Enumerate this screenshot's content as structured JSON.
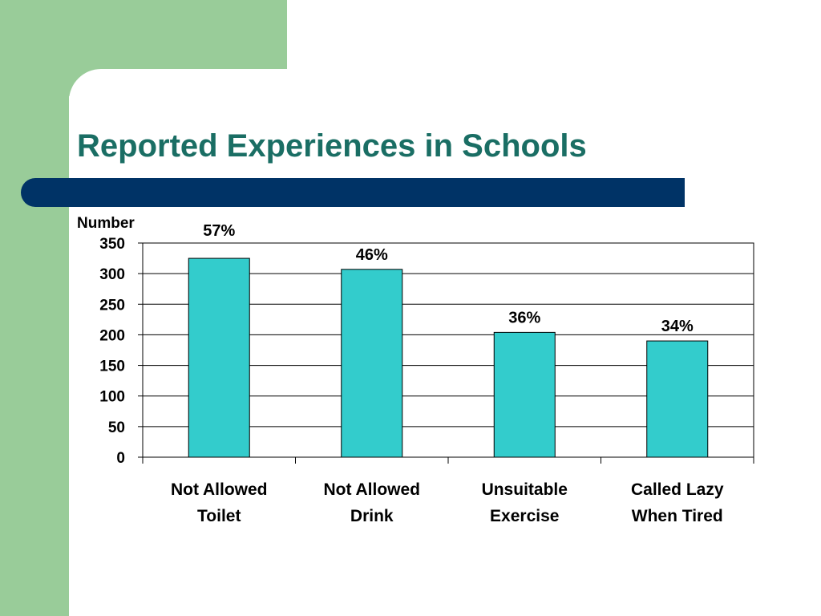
{
  "slide": {
    "title": "Reported Experiences in Schools",
    "colors": {
      "accent_green": "#99cc99",
      "title_bar": "#003366",
      "title_text": "#1a6e64"
    }
  },
  "chart_data": {
    "type": "bar",
    "title": "",
    "ylabel": "Number",
    "xlabel": "",
    "ylim": [
      0,
      350
    ],
    "yticks": [
      "0",
      "50",
      "100",
      "150",
      "200",
      "250",
      "300",
      "350"
    ],
    "categories": [
      [
        "Not Allowed",
        "Toilet"
      ],
      [
        "Not Allowed",
        "Drink"
      ],
      [
        "Unsuitable",
        "Exercise"
      ],
      [
        "Called Lazy",
        "When Tired"
      ]
    ],
    "values": [
      325,
      307,
      204,
      190
    ],
    "data_labels": [
      "57%",
      "46%",
      "36%",
      "34%"
    ],
    "bar_color": "#33cccc",
    "grid": true
  }
}
